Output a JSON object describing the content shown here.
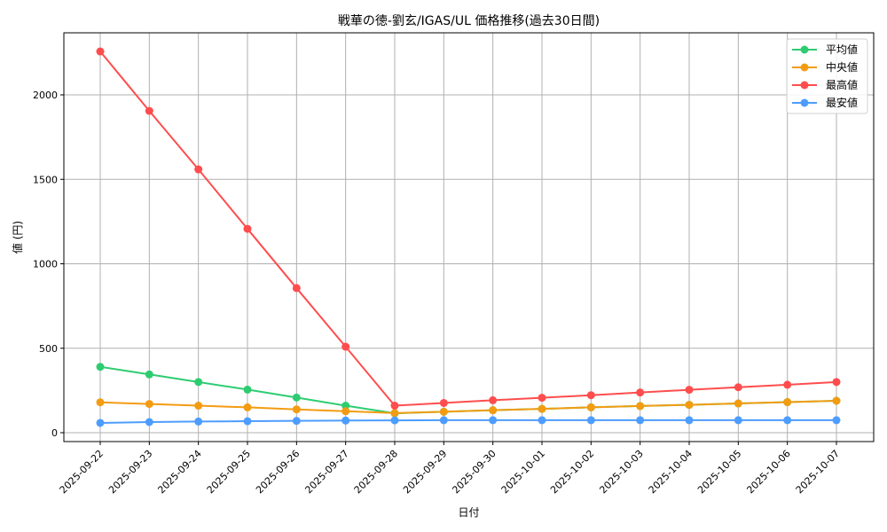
{
  "chart_data": {
    "type": "line",
    "title": "戦華の徳-劉玄/IGAS/UL 価格推移(過去30日間)",
    "xlabel": "日付",
    "ylabel": "値 (円)",
    "ylim": [
      -60,
      2370
    ],
    "yticks": [
      0,
      500,
      1000,
      1500,
      2000
    ],
    "grid": true,
    "legend_position": "upper right",
    "x": [
      "2025-09-22",
      "2025-09-23",
      "2025-09-24",
      "2025-09-25",
      "2025-09-26",
      "2025-09-27",
      "2025-09-28",
      "2025-09-29",
      "2025-09-30",
      "2025-10-01",
      "2025-10-02",
      "2025-10-03",
      "2025-10-04",
      "2025-10-05",
      "2025-10-06",
      "2025-10-07"
    ],
    "series": [
      {
        "name": "平均値",
        "color": "#2ecc71",
        "values": [
          390,
          345,
          300,
          255,
          208,
          160,
          115,
          124,
          133,
          141,
          150,
          158,
          165,
          173,
          181,
          189
        ]
      },
      {
        "name": "中央値",
        "color": "#f39c12",
        "values": [
          180,
          170,
          160,
          150,
          138,
          127,
          116,
          124,
          133,
          141,
          150,
          158,
          165,
          173,
          181,
          189
        ]
      },
      {
        "name": "最高値",
        "color": "#ff4d4d",
        "values": [
          2257,
          1905,
          1559,
          1207,
          856,
          509,
          160,
          176,
          192,
          207,
          222,
          238,
          254,
          269,
          284,
          300
        ]
      },
      {
        "name": "最安値",
        "color": "#4d9dff",
        "values": [
          58,
          63,
          66,
          68,
          70,
          72,
          73,
          74,
          74,
          74,
          74,
          74,
          74,
          74,
          74,
          74
        ]
      }
    ]
  }
}
